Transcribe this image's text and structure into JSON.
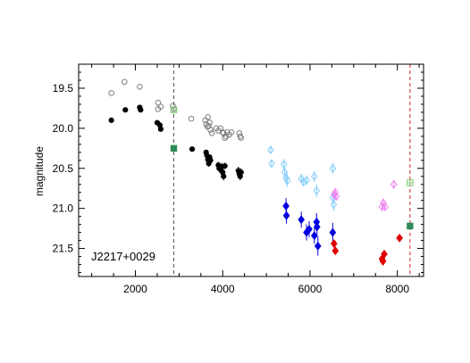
{
  "chart_data": {
    "type": "scatter",
    "title": "",
    "xlabel": "",
    "ylabel": "magnitude",
    "xlim": [
      700,
      8600
    ],
    "ylim": [
      21.85,
      19.2
    ],
    "y_inverted": true,
    "grid": false,
    "annotation": "J2217+0029",
    "xticks": [
      2000,
      4000,
      6000,
      8000
    ],
    "xtick_labels": [
      "2000",
      "4000",
      "6000",
      "8000"
    ],
    "yticks": [
      19.5,
      20.0,
      20.5,
      21.0,
      21.5
    ],
    "ytick_labels": [
      "19.5",
      "20.0",
      "20.5",
      "21.0",
      "21.5"
    ],
    "vlines": [
      {
        "x": 2880,
        "color": "#555555",
        "style": "dashed"
      },
      {
        "x": 8290,
        "color": "#d62728",
        "style": "dashed"
      }
    ],
    "series": [
      {
        "marker": "circle-open",
        "color": "#808080",
        "points": [
          [
            1450,
            19.56,
            0
          ],
          [
            1750,
            19.42,
            0
          ],
          [
            2100,
            19.48,
            0
          ],
          [
            2520,
            19.68,
            0
          ],
          [
            2580,
            19.73,
            0
          ],
          [
            2520,
            19.76,
            0
          ],
          [
            2860,
            19.72,
            0
          ],
          [
            2880,
            19.76,
            0
          ],
          [
            3280,
            19.88,
            0
          ],
          [
            3600,
            19.9,
            0
          ],
          [
            3620,
            19.95,
            0
          ],
          [
            3650,
            19.98,
            0
          ],
          [
            3660,
            19.86,
            0
          ],
          [
            3680,
            19.97,
            0
          ],
          [
            3700,
            19.93,
            0
          ],
          [
            3720,
            20.02,
            0
          ],
          [
            3750,
            20.06,
            0
          ],
          [
            3850,
            20.0,
            0
          ],
          [
            3900,
            20.03,
            0
          ],
          [
            3950,
            20.0,
            0
          ],
          [
            4000,
            20.05,
            0
          ],
          [
            4020,
            20.06,
            0
          ],
          [
            4050,
            20.12,
            0
          ],
          [
            4080,
            20.1,
            0
          ],
          [
            4100,
            20.05,
            0
          ],
          [
            4150,
            20.08,
            0
          ],
          [
            4200,
            20.05,
            0
          ],
          [
            4380,
            20.06,
            0
          ],
          [
            4400,
            20.1,
            0
          ],
          [
            4420,
            20.12,
            0
          ]
        ]
      },
      {
        "marker": "circle-filled",
        "color": "#000000",
        "points": [
          [
            1450,
            19.9,
            0
          ],
          [
            1770,
            19.77,
            0
          ],
          [
            2100,
            19.74,
            0
          ],
          [
            2120,
            19.77,
            0
          ],
          [
            2500,
            19.93,
            0
          ],
          [
            2560,
            19.96,
            0
          ],
          [
            2580,
            20.01,
            0
          ],
          [
            3300,
            20.26,
            0
          ],
          [
            3620,
            20.3,
            0.03
          ],
          [
            3640,
            20.34,
            0.03
          ],
          [
            3660,
            20.39,
            0.04
          ],
          [
            3680,
            20.44,
            0.04
          ],
          [
            3700,
            20.36,
            0.03
          ],
          [
            3720,
            20.4,
            0.04
          ],
          [
            3900,
            20.46,
            0.04
          ],
          [
            3920,
            20.5,
            0.05
          ],
          [
            3960,
            20.52,
            0.05
          ],
          [
            3980,
            20.48,
            0.05
          ],
          [
            4000,
            20.55,
            0.05
          ],
          [
            4020,
            20.6,
            0.05
          ],
          [
            4050,
            20.47,
            0.04
          ],
          [
            4360,
            20.53,
            0.05
          ],
          [
            4380,
            20.57,
            0.05
          ],
          [
            4400,
            20.6,
            0.05
          ],
          [
            4420,
            20.55,
            0.05
          ]
        ]
      },
      {
        "marker": "square-filled",
        "color": "#2e8b57",
        "points": [
          [
            2880,
            20.25,
            0
          ],
          [
            8290,
            21.22,
            0
          ]
        ]
      },
      {
        "marker": "square-open",
        "color": "#7bc96f",
        "points": [
          [
            2880,
            19.77,
            0
          ],
          [
            8290,
            20.68,
            0
          ]
        ]
      },
      {
        "marker": "diamond-open",
        "color": "#87cefa",
        "points": [
          [
            5100,
            20.27,
            0.05
          ],
          [
            5120,
            20.44,
            0.05
          ],
          [
            5400,
            20.45,
            0.07
          ],
          [
            5420,
            20.55,
            0.07
          ],
          [
            5450,
            20.62,
            0.08
          ],
          [
            5480,
            20.65,
            0.08
          ],
          [
            5800,
            20.63,
            0.06
          ],
          [
            5850,
            20.67,
            0.06
          ],
          [
            5920,
            20.65,
            0.06
          ],
          [
            6100,
            20.6,
            0.07
          ],
          [
            6150,
            20.78,
            0.08
          ],
          [
            6520,
            20.5,
            0.07
          ],
          [
            6530,
            20.87,
            0.08
          ],
          [
            6540,
            20.95,
            0.08
          ]
        ]
      },
      {
        "marker": "diamond-filled",
        "color": "#0000e0",
        "points": [
          [
            5450,
            20.97,
            0.1
          ],
          [
            5460,
            21.09,
            0.1
          ],
          [
            5800,
            21.14,
            0.1
          ],
          [
            5920,
            21.3,
            0.1
          ],
          [
            5980,
            21.26,
            0.1
          ],
          [
            6100,
            21.34,
            0.1
          ],
          [
            6150,
            21.17,
            0.11
          ],
          [
            6160,
            21.23,
            0.11
          ],
          [
            6180,
            21.47,
            0.12
          ],
          [
            6520,
            21.3,
            0.12
          ]
        ]
      },
      {
        "marker": "diamond-open",
        "color": "#ee82ee",
        "points": [
          [
            6550,
            20.83,
            0.05
          ],
          [
            6580,
            20.8,
            0.05
          ],
          [
            6600,
            20.85,
            0.05
          ],
          [
            7650,
            20.98,
            0.05
          ],
          [
            7680,
            20.93,
            0.05
          ],
          [
            7720,
            20.98,
            0.05
          ],
          [
            7920,
            20.7,
            0.04
          ]
        ]
      },
      {
        "marker": "diamond-filled",
        "color": "#e00000",
        "points": [
          [
            6550,
            21.44,
            0.04
          ],
          [
            6580,
            21.53,
            0.04
          ],
          [
            7650,
            21.63,
            0.04
          ],
          [
            7670,
            21.66,
            0.04
          ],
          [
            7700,
            21.57,
            0.04
          ],
          [
            8050,
            21.37,
            0.04
          ]
        ]
      }
    ]
  }
}
